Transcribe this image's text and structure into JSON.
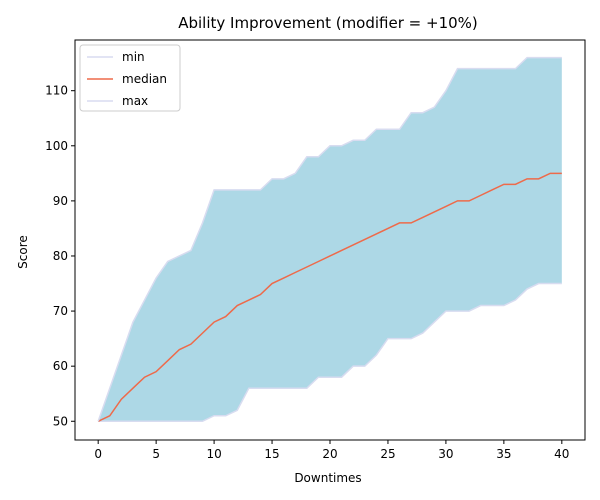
{
  "chart_data": {
    "type": "area",
    "title": "Ability Improvement (modifier = +10%)",
    "xlabel": "Downtimes",
    "ylabel": "Score",
    "xlim": [
      -2,
      42
    ],
    "ylim": [
      46.6,
      119.2
    ],
    "x_ticks": [
      0,
      5,
      10,
      15,
      20,
      25,
      30,
      35,
      40
    ],
    "y_ticks": [
      50,
      60,
      70,
      80,
      90,
      100,
      110
    ],
    "legend_position": "upper-left",
    "grid": false,
    "fill_color": "#add8e6",
    "x": [
      0,
      1,
      2,
      3,
      4,
      5,
      6,
      7,
      8,
      9,
      10,
      11,
      12,
      13,
      14,
      15,
      16,
      17,
      18,
      19,
      20,
      21,
      22,
      23,
      24,
      25,
      26,
      27,
      28,
      29,
      30,
      31,
      32,
      33,
      34,
      35,
      36,
      37,
      38,
      39,
      40
    ],
    "series": [
      {
        "name": "min",
        "color": "#d8dcf0",
        "values": [
          50,
          50,
          50,
          50,
          50,
          50,
          50,
          50,
          50,
          50,
          51,
          51,
          52,
          56,
          56,
          56,
          56,
          56,
          56,
          58,
          58,
          58,
          60,
          60,
          62,
          65,
          65,
          65,
          66,
          68,
          70,
          70,
          70,
          71,
          71,
          71,
          72,
          74,
          75,
          75,
          75
        ]
      },
      {
        "name": "median",
        "color": "#ee6a4a",
        "values": [
          50,
          51,
          54,
          56,
          58,
          59,
          61,
          63,
          64,
          66,
          68,
          69,
          71,
          72,
          73,
          75,
          76,
          77,
          78,
          79,
          80,
          81,
          82,
          83,
          84,
          85,
          86,
          86,
          87,
          88,
          89,
          90,
          90,
          91,
          92,
          93,
          93,
          94,
          94,
          95,
          95
        ]
      },
      {
        "name": "max",
        "color": "#d8dcf0",
        "values": [
          50,
          56,
          62,
          68,
          72,
          76,
          79,
          80,
          81,
          86,
          92,
          92,
          92,
          92,
          92,
          94,
          94,
          95,
          98,
          98,
          100,
          100,
          101,
          101,
          103,
          103,
          103,
          106,
          106,
          107,
          110,
          114,
          114,
          114,
          114,
          114,
          114,
          116,
          116,
          116,
          116
        ]
      }
    ]
  }
}
